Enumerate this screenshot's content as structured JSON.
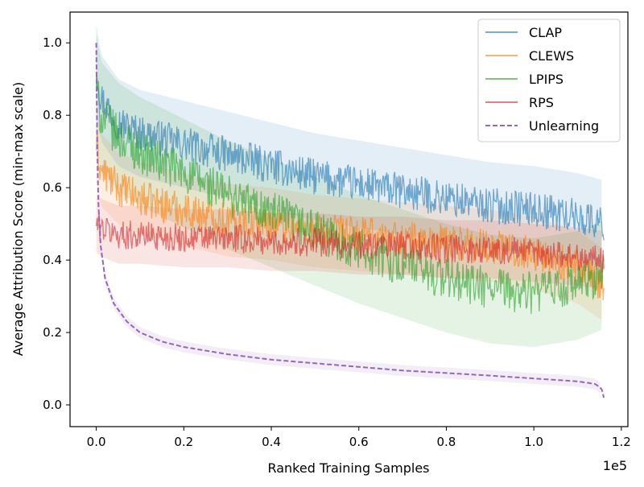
{
  "chart_data": {
    "type": "line",
    "xlabel": "Ranked Training Samples",
    "ylabel": "Average Attribution Score (min-max scale)",
    "x_offset_text": "1e5",
    "xlim": [
      -0.06,
      1.215
    ],
    "ylim": [
      -0.06,
      1.085
    ],
    "x_ticks": [
      0.0,
      0.2,
      0.4,
      0.6,
      0.8,
      1.0,
      1.2
    ],
    "x_tick_labels": [
      "0.0",
      "0.2",
      "0.4",
      "0.6",
      "0.8",
      "1.0",
      "1.2"
    ],
    "y_ticks": [
      0.0,
      0.2,
      0.4,
      0.6,
      0.8,
      1.0
    ],
    "y_tick_labels": [
      "0.0",
      "0.2",
      "0.4",
      "0.6",
      "0.8",
      "1.0"
    ],
    "x_max": 1.16,
    "legend_position": "upper right",
    "series": [
      {
        "name": "CLAP",
        "color": "#1f77b4",
        "style": "solid",
        "x": [
          0.0,
          0.01,
          0.05,
          0.1,
          0.2,
          0.3,
          0.4,
          0.5,
          0.6,
          0.7,
          0.8,
          0.9,
          1.0,
          1.1,
          1.16
        ],
        "y": [
          0.93,
          0.85,
          0.78,
          0.75,
          0.72,
          0.69,
          0.66,
          0.63,
          0.61,
          0.59,
          0.57,
          0.55,
          0.54,
          0.52,
          0.5
        ],
        "noise": 0.05,
        "band": 0.12
      },
      {
        "name": "CLEWS",
        "color": "#ff7f0e",
        "style": "solid",
        "x": [
          0.0,
          0.01,
          0.05,
          0.1,
          0.2,
          0.3,
          0.4,
          0.5,
          0.6,
          0.7,
          0.8,
          0.9,
          1.0,
          1.1,
          1.16
        ],
        "y": [
          0.72,
          0.65,
          0.6,
          0.57,
          0.54,
          0.51,
          0.5,
          0.48,
          0.47,
          0.46,
          0.45,
          0.44,
          0.42,
          0.38,
          0.33
        ],
        "noise": 0.05,
        "band": 0.1
      },
      {
        "name": "LPIPS",
        "color": "#2ca02c",
        "style": "solid",
        "x": [
          0.0,
          0.01,
          0.05,
          0.1,
          0.2,
          0.3,
          0.4,
          0.5,
          0.6,
          0.7,
          0.8,
          0.9,
          1.0,
          1.1,
          1.16
        ],
        "y": [
          0.88,
          0.8,
          0.74,
          0.7,
          0.64,
          0.58,
          0.53,
          0.48,
          0.43,
          0.39,
          0.35,
          0.32,
          0.31,
          0.33,
          0.36
        ],
        "noise": 0.06,
        "band": 0.15
      },
      {
        "name": "RPS",
        "color": "#d62728",
        "style": "solid",
        "x": [
          0.0,
          0.01,
          0.05,
          0.1,
          0.2,
          0.3,
          0.4,
          0.5,
          0.6,
          0.7,
          0.8,
          0.9,
          1.0,
          1.1,
          1.16
        ],
        "y": [
          0.5,
          0.49,
          0.47,
          0.47,
          0.46,
          0.46,
          0.45,
          0.45,
          0.44,
          0.44,
          0.43,
          0.43,
          0.42,
          0.41,
          0.4
        ],
        "noise": 0.04,
        "band": 0.08
      },
      {
        "name": "Unlearning",
        "color": "#9467bd",
        "style": "dashed",
        "x": [
          0.0,
          0.002,
          0.005,
          0.01,
          0.02,
          0.04,
          0.07,
          0.1,
          0.15,
          0.2,
          0.3,
          0.4,
          0.5,
          0.6,
          0.7,
          0.8,
          0.9,
          1.0,
          1.05,
          1.1,
          1.14,
          1.155,
          1.16
        ],
        "y": [
          1.0,
          0.72,
          0.55,
          0.44,
          0.35,
          0.28,
          0.23,
          0.2,
          0.175,
          0.16,
          0.14,
          0.125,
          0.115,
          0.105,
          0.095,
          0.088,
          0.081,
          0.073,
          0.069,
          0.065,
          0.058,
          0.045,
          0.02
        ],
        "noise": 0.0,
        "band": 0.015
      }
    ]
  }
}
